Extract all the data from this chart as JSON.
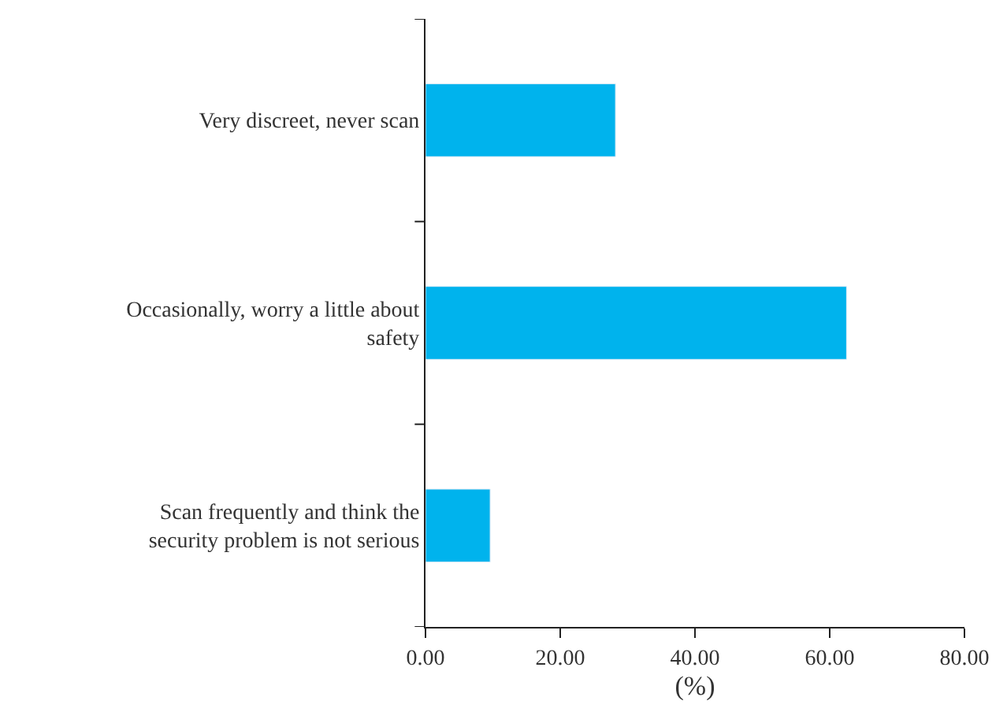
{
  "chart_data": {
    "type": "bar",
    "orientation": "horizontal",
    "categories": [
      "Very discreet, never scan",
      "Occasionally, worry a little about safety",
      "Scan frequently and think the security problem is not serious"
    ],
    "values": [
      28.2,
      62.5,
      9.6
    ],
    "color": "#00b3ed",
    "xlabel": "(%)",
    "xlim": [
      0,
      80
    ],
    "xticks": [
      {
        "value": 0,
        "label": "0.00"
      },
      {
        "value": 20,
        "label": "20.00"
      },
      {
        "value": 40,
        "label": "40.00"
      },
      {
        "value": 60,
        "label": "60.00"
      },
      {
        "value": 80,
        "label": "80.00"
      }
    ]
  }
}
